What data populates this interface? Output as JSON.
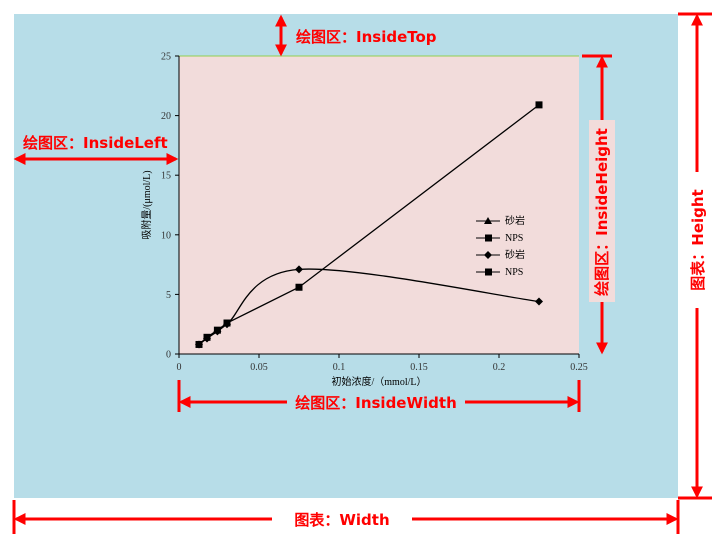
{
  "chart_data": {
    "type": "line",
    "xlabel": "初始浓度/（mmol/L）",
    "ylabel": "吸附量/(μmol/L)",
    "xlim": [
      0,
      0.25
    ],
    "ylim": [
      0,
      25
    ],
    "x_ticks": [
      "0",
      "0.05",
      "0.1",
      "0.15",
      "0.2",
      "0.25"
    ],
    "y_ticks": [
      "0",
      "5",
      "10",
      "15",
      "20",
      "25"
    ],
    "legend_position": "right-middle",
    "grid": false,
    "series": [
      {
        "name": "砂岩",
        "marker": "triangle",
        "smooth": false,
        "x": [],
        "y": []
      },
      {
        "name": "NPS",
        "marker": "square",
        "smooth": false,
        "x": [],
        "y": []
      },
      {
        "name": "砂岩",
        "marker": "diamond",
        "smooth": true,
        "x": [
          0.0125,
          0.0175,
          0.024,
          0.03,
          0.075,
          0.225
        ],
        "y": [
          0.8,
          1.3,
          1.9,
          2.5,
          7.1,
          4.4
        ]
      },
      {
        "name": "NPS",
        "marker": "square",
        "smooth": false,
        "x": [
          0.0125,
          0.0175,
          0.024,
          0.03,
          0.075,
          0.225
        ],
        "y": [
          0.8,
          1.4,
          2.0,
          2.6,
          5.6,
          20.9
        ]
      }
    ]
  },
  "annotations": {
    "inside_top": "绘图区：InsideTop",
    "inside_left": "绘图区：InsideLeft",
    "inside_height": "绘图区：InsideHeight",
    "inside_width": "绘图区：InsideWidth",
    "chart_height": "图表：Height",
    "chart_width": "图表：Width"
  },
  "colors": {
    "chart_bg": "#b7dde8",
    "plot_bg": "#f2dcdb",
    "annotation": "#ff0000",
    "series": "#000000"
  }
}
